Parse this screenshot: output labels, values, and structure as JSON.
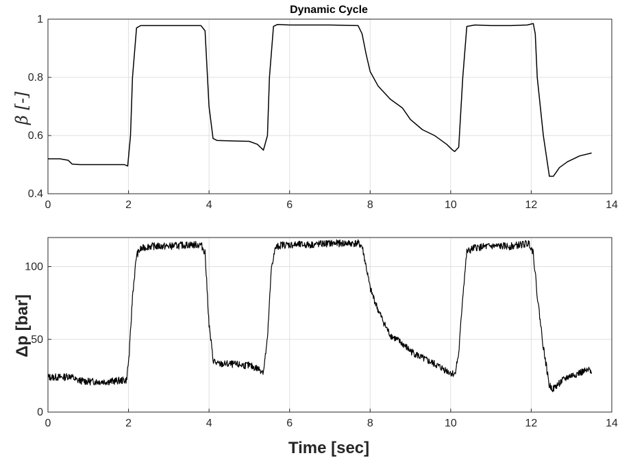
{
  "chart_data": [
    {
      "type": "line",
      "title": "Dynamic Cycle",
      "xlabel": "",
      "ylabel": "β [-]",
      "xlim": [
        0,
        14
      ],
      "ylim": [
        0.4,
        1.0
      ],
      "xticks": [
        "0",
        "2",
        "4",
        "6",
        "8",
        "10",
        "12",
        "14"
      ],
      "yticks": [
        "0.4",
        "0.6",
        "0.8",
        "1"
      ],
      "grid": true,
      "series": [
        {
          "color": "#000000",
          "x": [
            0,
            0.3,
            0.5,
            0.6,
            0.8,
            1.2,
            1.6,
            1.9,
            1.98,
            2.05,
            2.1,
            2.2,
            2.3,
            2.5,
            3.0,
            3.5,
            3.8,
            3.9,
            4.0,
            4.1,
            4.2,
            4.5,
            5.0,
            5.2,
            5.35,
            5.45,
            5.5,
            5.6,
            5.7,
            6.0,
            7.0,
            7.7,
            7.8,
            7.9,
            8.0,
            8.2,
            8.5,
            8.8,
            9.0,
            9.3,
            9.6,
            9.9,
            10.05,
            10.1,
            10.2,
            10.3,
            10.4,
            10.6,
            11.0,
            11.5,
            11.9,
            12.05,
            12.1,
            12.15,
            12.3,
            12.45,
            12.55,
            12.7,
            12.9,
            13.2,
            13.5
          ],
          "y": [
            0.52,
            0.52,
            0.515,
            0.502,
            0.5,
            0.5,
            0.5,
            0.5,
            0.495,
            0.6,
            0.8,
            0.97,
            0.978,
            0.978,
            0.978,
            0.978,
            0.978,
            0.96,
            0.7,
            0.59,
            0.583,
            0.582,
            0.58,
            0.57,
            0.55,
            0.6,
            0.8,
            0.975,
            0.982,
            0.98,
            0.98,
            0.978,
            0.95,
            0.88,
            0.82,
            0.77,
            0.725,
            0.695,
            0.655,
            0.62,
            0.6,
            0.57,
            0.55,
            0.545,
            0.56,
            0.8,
            0.975,
            0.98,
            0.978,
            0.978,
            0.98,
            0.985,
            0.95,
            0.8,
            0.6,
            0.46,
            0.46,
            0.49,
            0.51,
            0.53,
            0.54
          ]
        }
      ]
    },
    {
      "type": "line",
      "title": "",
      "xlabel": "Time [sec]",
      "ylabel": "Δp [bar]",
      "xlim": [
        0,
        14
      ],
      "ylim": [
        0,
        120
      ],
      "xticks": [
        "0",
        "2",
        "4",
        "6",
        "8",
        "10",
        "12",
        "14"
      ],
      "yticks": [
        "0",
        "50",
        "100"
      ],
      "grid": true,
      "series": [
        {
          "color": "#000000",
          "x": [
            0,
            0.4,
            0.55,
            0.7,
            1.0,
            1.5,
            1.95,
            2.02,
            2.1,
            2.2,
            2.3,
            2.5,
            3.0,
            3.5,
            3.8,
            3.9,
            4.0,
            4.1,
            4.2,
            4.5,
            5.0,
            5.2,
            5.35,
            5.45,
            5.55,
            5.65,
            5.8,
            6.5,
            7.0,
            7.7,
            7.8,
            7.9,
            8.0,
            8.2,
            8.4,
            8.5,
            8.8,
            9.0,
            9.3,
            9.6,
            10.0,
            10.1,
            10.2,
            10.3,
            10.4,
            10.6,
            11.0,
            11.5,
            11.95,
            12.05,
            12.15,
            12.3,
            12.45,
            12.55,
            12.7,
            12.9,
            13.2,
            13.5
          ],
          "y": [
            24,
            24,
            25,
            22,
            21,
            21,
            22,
            40,
            80,
            108,
            112,
            114,
            114,
            115,
            115,
            110,
            60,
            36,
            33,
            33,
            32,
            30,
            28,
            50,
            100,
            113,
            115,
            115,
            116,
            116,
            114,
            100,
            85,
            70,
            58,
            53,
            47,
            42,
            37,
            33,
            27,
            26,
            40,
            80,
            110,
            113,
            114,
            114,
            116,
            110,
            80,
            45,
            18,
            16,
            20,
            24,
            27,
            29
          ]
        }
      ]
    }
  ]
}
